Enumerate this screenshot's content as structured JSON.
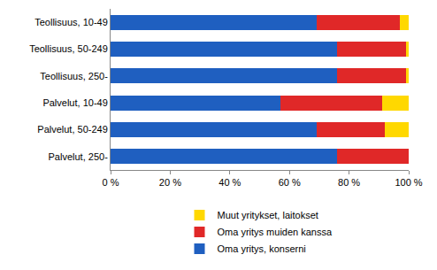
{
  "chart_data": {
    "type": "bar",
    "orientation": "horizontal",
    "stacked": true,
    "categories": [
      "Teollisuus, 10-49",
      "Teollisuus, 50-249",
      "Teollisuus, 250-",
      "Palvelut, 10-49",
      "Palvelut, 50-249",
      "Palvelut, 250-"
    ],
    "series": [
      {
        "name": "Oma yritys, konserni",
        "color": "#1f5fc0",
        "values": [
          69,
          76,
          76,
          57,
          69,
          76
        ]
      },
      {
        "name": "Oma yritys muiden kanssa",
        "color": "#e02828",
        "values": [
          28,
          23,
          23,
          34,
          23,
          24
        ]
      },
      {
        "name": "Muut yritykset, laitokset",
        "color": "#ffd800",
        "values": [
          3,
          1,
          1,
          9,
          8,
          0
        ]
      }
    ],
    "xlim": [
      0,
      100
    ],
    "xticks": [
      {
        "value": 0,
        "label": "0 %"
      },
      {
        "value": 20,
        "label": "20 %"
      },
      {
        "value": 40,
        "label": "40 %"
      },
      {
        "value": 60,
        "label": "60 %"
      },
      {
        "value": 80,
        "label": "80 %"
      },
      {
        "value": 100,
        "label": "100 %"
      }
    ],
    "grid": false,
    "legend": "bottom"
  }
}
